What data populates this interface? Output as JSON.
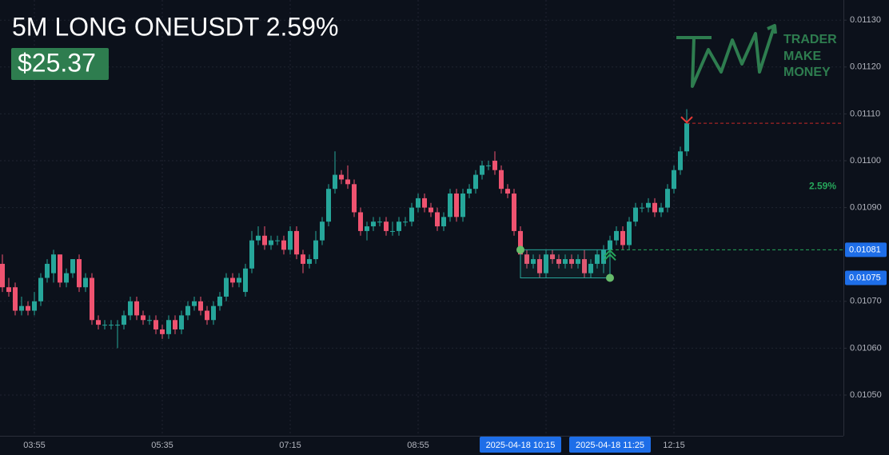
{
  "chart_data": {
    "type": "candlestick",
    "title": "5M LONG ONEUSDT 2.59%",
    "pnl": "$25.37",
    "logo": [
      "TRADER",
      "MAKE",
      "MONEY"
    ],
    "gain_label": "2.59%",
    "up_color": "#26a69a",
    "down_color": "#ef5370",
    "grid": true,
    "ylim": [
      0.010413,
      0.011343
    ],
    "yticks": [
      {
        "value": 0.0105,
        "label": "0.01050"
      },
      {
        "value": 0.0106,
        "label": "0.01060"
      },
      {
        "value": 0.0107,
        "label": "0.01070"
      },
      {
        "value": 0.0109,
        "label": "0.01090"
      },
      {
        "value": 0.011,
        "label": "0.01100"
      },
      {
        "value": 0.0111,
        "label": "0.01110"
      },
      {
        "value": 0.0112,
        "label": "0.01120"
      },
      {
        "value": 0.0113,
        "label": "0.01130"
      }
    ],
    "price_badges": [
      {
        "value": 0.01081,
        "label": "0.01081"
      },
      {
        "value": 0.01075,
        "label": "0.01075"
      }
    ],
    "entry": 0.01081,
    "target": 0.01108,
    "range_box": {
      "top": 0.01081,
      "bottom": 0.01075
    },
    "categories": [
      null,
      null,
      null,
      null,
      null,
      "03:55",
      null,
      null,
      null,
      null,
      null,
      null,
      null,
      null,
      null,
      null,
      null,
      null,
      null,
      null,
      null,
      null,
      null,
      null,
      null,
      "05:35",
      null,
      null,
      null,
      null,
      null,
      null,
      null,
      null,
      null,
      null,
      null,
      null,
      null,
      null,
      null,
      null,
      null,
      null,
      null,
      "07:15",
      null,
      null,
      null,
      null,
      null,
      null,
      null,
      null,
      null,
      null,
      null,
      null,
      null,
      null,
      null,
      null,
      null,
      null,
      null,
      "08:55",
      null,
      null,
      null,
      null,
      null,
      null,
      null,
      null,
      null,
      null,
      null,
      null,
      null,
      null,
      null,
      "2025-04-18 10:15",
      null,
      null,
      null,
      null,
      null,
      null,
      null,
      null,
      null,
      null,
      null,
      null,
      null,
      "2025-04-18 11:25",
      null,
      null,
      null,
      null,
      null,
      null,
      null,
      null,
      null,
      "12:15",
      null,
      null
    ],
    "open": [
      0.01078,
      0.01073,
      0.01073,
      0.01068,
      0.01069,
      0.01068,
      0.0107,
      0.01075,
      0.01076,
      0.0108,
      0.01074,
      0.01076,
      0.01079,
      0.01073,
      0.01075,
      0.01066,
      0.01065,
      0.01065,
      0.01065,
      0.01065,
      0.01067,
      0.0107,
      0.01067,
      0.01066,
      0.01066,
      0.01064,
      0.01063,
      0.01066,
      0.01064,
      0.01067,
      0.01069,
      0.0107,
      0.01068,
      0.01066,
      0.01069,
      0.01071,
      0.01075,
      0.01074,
      0.01072,
      0.01077,
      0.01083,
      0.01084,
      0.01082,
      0.01083,
      0.01083,
      0.01081,
      0.01085,
      0.0108,
      0.01078,
      0.01079,
      0.01083,
      0.01087,
      0.01094,
      0.01097,
      0.01096,
      0.01095,
      0.01089,
      0.01085,
      0.01086,
      0.01087,
      0.01087,
      0.01085,
      0.01085,
      0.01087,
      0.01087,
      0.0109,
      0.01092,
      0.0109,
      0.01089,
      0.01086,
      0.01088,
      0.01093,
      0.01088,
      0.01093,
      0.01094,
      0.01097,
      0.01099,
      0.011,
      0.01098,
      0.01094,
      0.01093,
      0.01085,
      0.0108,
      0.01078,
      0.01079,
      0.01076,
      0.0108,
      0.01079,
      0.01078,
      0.01079,
      0.01078,
      0.01079,
      0.01076,
      0.01078,
      0.01078,
      0.01081,
      0.01083,
      0.01085,
      0.01082,
      0.01087,
      0.0109,
      0.0109,
      0.01091,
      0.01089,
      0.0109,
      0.01094,
      0.01098,
      0.01102
    ],
    "high": [
      0.0108,
      0.01075,
      0.01074,
      0.01071,
      0.0107,
      0.01072,
      0.01076,
      0.01079,
      0.01081,
      0.0108,
      0.01077,
      0.01079,
      0.0108,
      0.01076,
      0.01076,
      0.01067,
      0.01066,
      0.01066,
      0.01066,
      0.01068,
      0.01071,
      0.01071,
      0.01068,
      0.01067,
      0.01067,
      0.01065,
      0.01067,
      0.01067,
      0.01068,
      0.0107,
      0.01071,
      0.01071,
      0.01069,
      0.0107,
      0.01072,
      0.01076,
      0.01076,
      0.01076,
      0.01078,
      0.01085,
      0.01086,
      0.01086,
      0.01084,
      0.01084,
      0.01084,
      0.01086,
      0.01086,
      0.01081,
      0.0108,
      0.01085,
      0.01088,
      0.01095,
      0.01102,
      0.01098,
      0.01099,
      0.01096,
      0.0109,
      0.01087,
      0.01088,
      0.01088,
      0.01088,
      0.01087,
      0.01088,
      0.01088,
      0.01091,
      0.01093,
      0.01093,
      0.01091,
      0.0109,
      0.01089,
      0.01094,
      0.01094,
      0.01094,
      0.01095,
      0.01098,
      0.011,
      0.011,
      0.01102,
      0.01099,
      0.01095,
      0.01094,
      0.01086,
      0.01081,
      0.0108,
      0.0108,
      0.01081,
      0.01081,
      0.0108,
      0.0108,
      0.0108,
      0.0108,
      0.01081,
      0.01079,
      0.01081,
      0.01082,
      0.01084,
      0.01086,
      0.01086,
      0.01088,
      0.01091,
      0.01091,
      0.01092,
      0.01092,
      0.01091,
      0.01095,
      0.01099,
      0.01103,
      0.01111
    ],
    "low": [
      0.01072,
      0.01071,
      0.01067,
      0.01067,
      0.01067,
      0.01067,
      0.01069,
      0.01074,
      0.01074,
      0.01073,
      0.01073,
      0.01075,
      0.01072,
      0.01072,
      0.01065,
      0.01064,
      0.01064,
      0.01064,
      0.0106,
      0.01064,
      0.01066,
      0.01066,
      0.01065,
      0.01065,
      0.01063,
      0.01062,
      0.01062,
      0.01063,
      0.01063,
      0.01066,
      0.01068,
      0.01067,
      0.01065,
      0.01065,
      0.01068,
      0.0107,
      0.01073,
      0.01073,
      0.01071,
      0.01076,
      0.01082,
      0.01081,
      0.01081,
      0.01082,
      0.0108,
      0.0108,
      0.01079,
      0.01076,
      0.01077,
      0.01078,
      0.01082,
      0.01086,
      0.01093,
      0.01095,
      0.01094,
      0.01088,
      0.01084,
      0.01083,
      0.01085,
      0.01086,
      0.01084,
      0.01084,
      0.01084,
      0.01086,
      0.01086,
      0.01089,
      0.01089,
      0.01088,
      0.01085,
      0.01085,
      0.01087,
      0.01087,
      0.01087,
      0.01092,
      0.01093,
      0.01096,
      0.01098,
      0.01097,
      0.01093,
      0.01092,
      0.01084,
      0.01079,
      0.01077,
      0.01077,
      0.01075,
      0.01075,
      0.01078,
      0.01077,
      0.01077,
      0.01077,
      0.01077,
      0.01075,
      0.01075,
      0.01077,
      0.01076,
      0.0108,
      0.01082,
      0.01081,
      0.01081,
      0.01086,
      0.01089,
      0.01089,
      0.01088,
      0.01088,
      0.01089,
      0.01093,
      0.01097,
      0.01101
    ],
    "close": [
      0.01073,
      0.01072,
      0.01068,
      0.01069,
      0.01068,
      0.0107,
      0.01075,
      0.01078,
      0.0108,
      0.01074,
      0.01076,
      0.01079,
      0.01073,
      0.01075,
      0.01066,
      0.01065,
      0.01065,
      0.01065,
      0.01065,
      0.01067,
      0.0107,
      0.01067,
      0.01066,
      0.01066,
      0.01064,
      0.01063,
      0.01066,
      0.01064,
      0.01067,
      0.01069,
      0.0107,
      0.01068,
      0.01066,
      0.01069,
      0.01071,
      0.01075,
      0.01074,
      0.01075,
      0.01077,
      0.01083,
      0.01084,
      0.01082,
      0.01083,
      0.01083,
      0.01081,
      0.01085,
      0.0108,
      0.01078,
      0.01079,
      0.01083,
      0.01087,
      0.01094,
      0.01097,
      0.01096,
      0.01095,
      0.01089,
      0.01085,
      0.01086,
      0.01087,
      0.01087,
      0.01085,
      0.01085,
      0.01087,
      0.01087,
      0.0109,
      0.01092,
      0.0109,
      0.01089,
      0.01086,
      0.01088,
      0.01093,
      0.01088,
      0.01093,
      0.01094,
      0.01097,
      0.01099,
      0.01099,
      0.01098,
      0.01094,
      0.01093,
      0.01085,
      0.0108,
      0.01078,
      0.01079,
      0.01076,
      0.0108,
      0.01079,
      0.01078,
      0.01079,
      0.01078,
      0.01079,
      0.01076,
      0.01078,
      0.0108,
      0.01081,
      0.01083,
      0.01085,
      0.01082,
      0.01087,
      0.0109,
      0.0109,
      0.01091,
      0.01089,
      0.0109,
      0.01094,
      0.01098,
      0.01102,
      0.01108
    ]
  }
}
